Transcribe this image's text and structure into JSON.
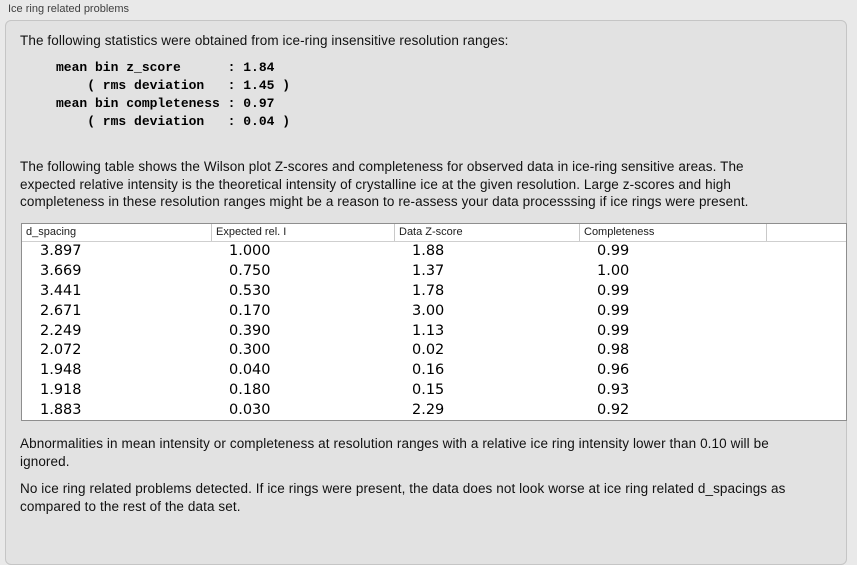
{
  "panel": {
    "title": "Ice ring related problems"
  },
  "intro": "The following statistics were obtained from ice-ring insensitive resolution ranges:",
  "stats_block": "mean bin z_score      : 1.84\n    ( rms deviation   : 1.45 )\nmean bin completeness : 0.97\n    ( rms deviation   : 0.04 )",
  "table_intro": "The following table shows the Wilson plot Z-scores and completeness for observed data in ice-ring sensitive areas. The expected relative intensity is the theoretical intensity of crystalline ice at the given resolution. Large z-scores and high completeness in these resolution ranges might be a reason to re-assess your data processsing if ice rings were present.",
  "table": {
    "columns": [
      "d_spacing",
      "Expected rel. I",
      "Data Z-score",
      "Completeness"
    ],
    "rows": [
      [
        "3.897",
        "1.000",
        "1.88",
        "0.99"
      ],
      [
        "3.669",
        "0.750",
        "1.37",
        "1.00"
      ],
      [
        "3.441",
        "0.530",
        "1.78",
        "0.99"
      ],
      [
        "2.671",
        "0.170",
        "3.00",
        "0.99"
      ],
      [
        "2.249",
        "0.390",
        "1.13",
        "0.99"
      ],
      [
        "2.072",
        "0.300",
        "0.02",
        "0.98"
      ],
      [
        "1.948",
        "0.040",
        "0.16",
        "0.96"
      ],
      [
        "1.918",
        "0.180",
        "0.15",
        "0.93"
      ],
      [
        "1.883",
        "0.030",
        "2.29",
        "0.92"
      ]
    ]
  },
  "note_ignore": "Abnormalities in mean intensity or completeness at resolution ranges with a relative ice ring intensity lower than 0.10 will be ignored.",
  "conclusion": "No ice ring related problems detected. If ice rings were present, the data does not look worse at ice ring related d_spacings as compared to the rest of the data set."
}
